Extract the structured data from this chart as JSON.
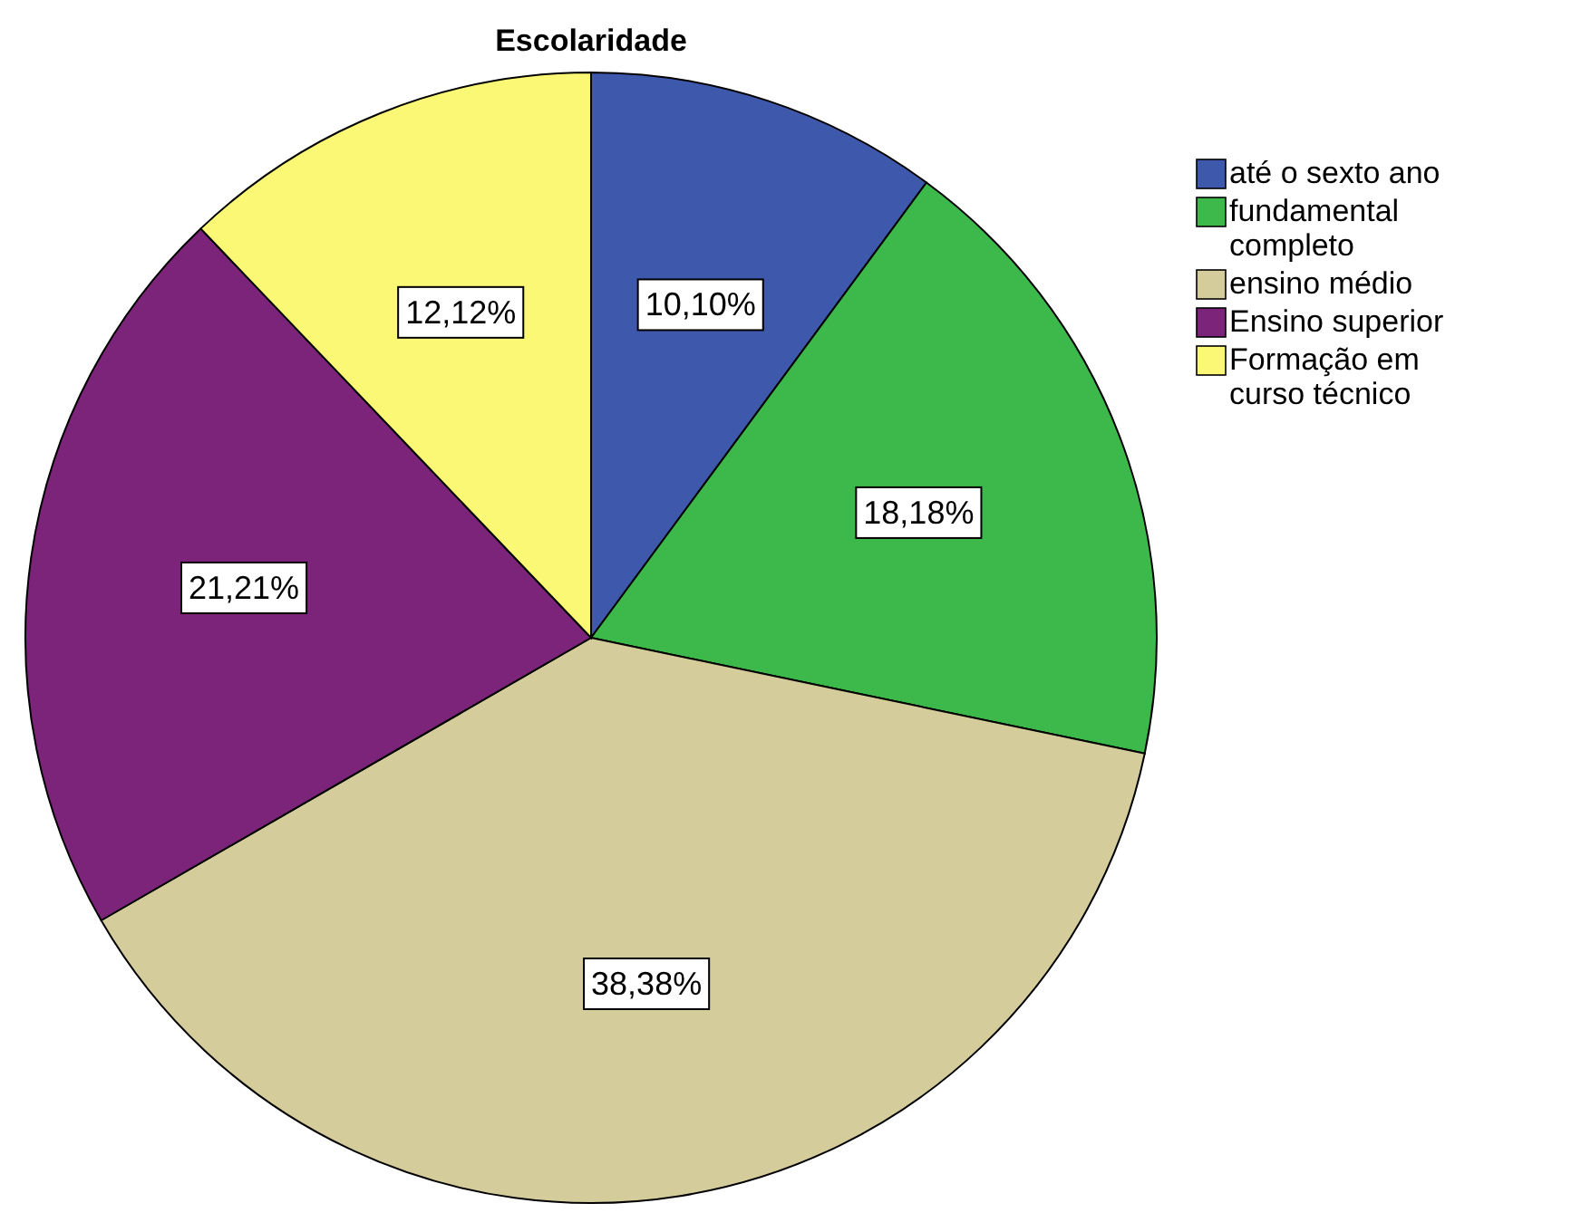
{
  "chart_data": {
    "type": "pie",
    "title": "Escolaridade",
    "categories": [
      "até o sexto ano",
      "fundamental completo",
      "ensino médio",
      "Ensino superior",
      "Formação em curso técnico"
    ],
    "values": [
      10.1,
      18.18,
      38.38,
      21.21,
      12.12
    ],
    "value_labels": [
      "10,10%",
      "18,18%",
      "38,38%",
      "21,21%",
      "12,12%"
    ],
    "colors": [
      "#3e58ac",
      "#3db84a",
      "#d5cc9b",
      "#7c2479",
      "#fbf876"
    ],
    "legend": "right"
  }
}
